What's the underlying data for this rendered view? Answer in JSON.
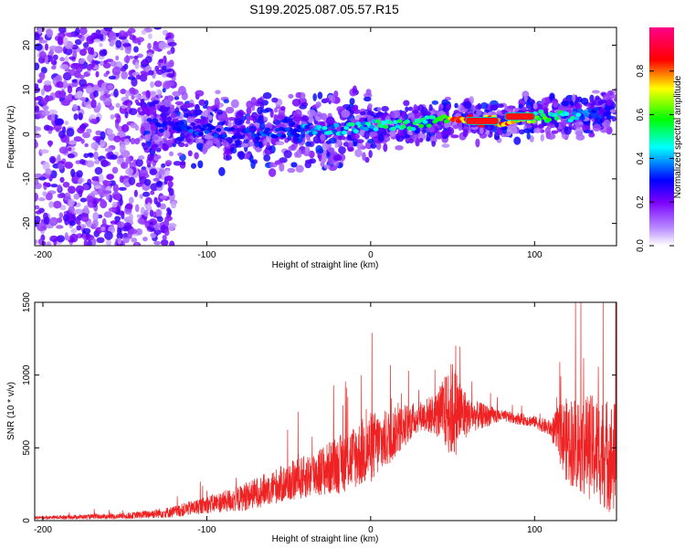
{
  "page": {
    "title": "S199.2025.087.05.57.R15"
  },
  "chart_data": [
    {
      "type": "heatmap",
      "title": "S199.2025.087.05.57.R15",
      "xlabel": "Height of straight line (km)",
      "ylabel": "Frequency (Hz)",
      "xlim": [
        -205,
        150
      ],
      "ylim": [
        -25,
        24
      ],
      "xticks": [
        -200,
        -100,
        0,
        100
      ],
      "yticks": [
        -20,
        -10,
        0,
        10,
        20
      ],
      "colorbar": {
        "label": "Normalized spectral amplitude",
        "range": [
          0,
          1
        ],
        "ticks": [
          0.0,
          0.2,
          0.4,
          0.6,
          0.8
        ],
        "colormap": [
          "#ffffff",
          "#b98cff",
          "#7a00ff",
          "#0000ff",
          "#00ffff",
          "#00ff00",
          "#ffff00",
          "#ff0000",
          "#ff0088"
        ]
      },
      "ridge": {
        "x": [
          -130,
          -100,
          -80,
          -60,
          -40,
          -20,
          0,
          20,
          40,
          55,
          80,
          100,
          120,
          140
        ],
        "frequency": [
          2,
          1,
          0,
          0,
          1,
          1,
          2,
          2,
          3,
          3,
          3,
          4,
          4,
          5
        ],
        "amplitude": [
          0.3,
          0.35,
          0.3,
          0.35,
          0.4,
          0.45,
          0.5,
          0.55,
          0.6,
          0.95,
          0.9,
          0.6,
          0.5,
          0.3
        ]
      }
    },
    {
      "type": "line",
      "xlabel": "Height of straight line (km)",
      "ylabel": "SNR (10 * v/v)",
      "xlim": [
        -205,
        150
      ],
      "ylim": [
        0,
        1500
      ],
      "xticks": [
        -200,
        -100,
        0,
        100
      ],
      "yticks": [
        0,
        500,
        1000,
        1500
      ],
      "color": "#ee2222",
      "series": [
        {
          "x": [
            -205,
            -180,
            -150,
            -120,
            -100,
            -80,
            -60,
            -40,
            -20,
            0,
            10,
            20,
            30,
            40,
            50,
            60,
            80,
            100,
            110,
            115,
            120,
            130,
            140,
            150
          ],
          "y": [
            20,
            25,
            30,
            60,
            110,
            150,
            230,
            300,
            380,
            500,
            560,
            650,
            720,
            730,
            760,
            720,
            720,
            680,
            630,
            600,
            550,
            520,
            480,
            420
          ],
          "spread": [
            10,
            15,
            20,
            40,
            60,
            90,
            120,
            150,
            200,
            250,
            200,
            150,
            100,
            150,
            350,
            120,
            40,
            40,
            60,
            200,
            300,
            350,
            380,
            400
          ]
        }
      ]
    }
  ]
}
